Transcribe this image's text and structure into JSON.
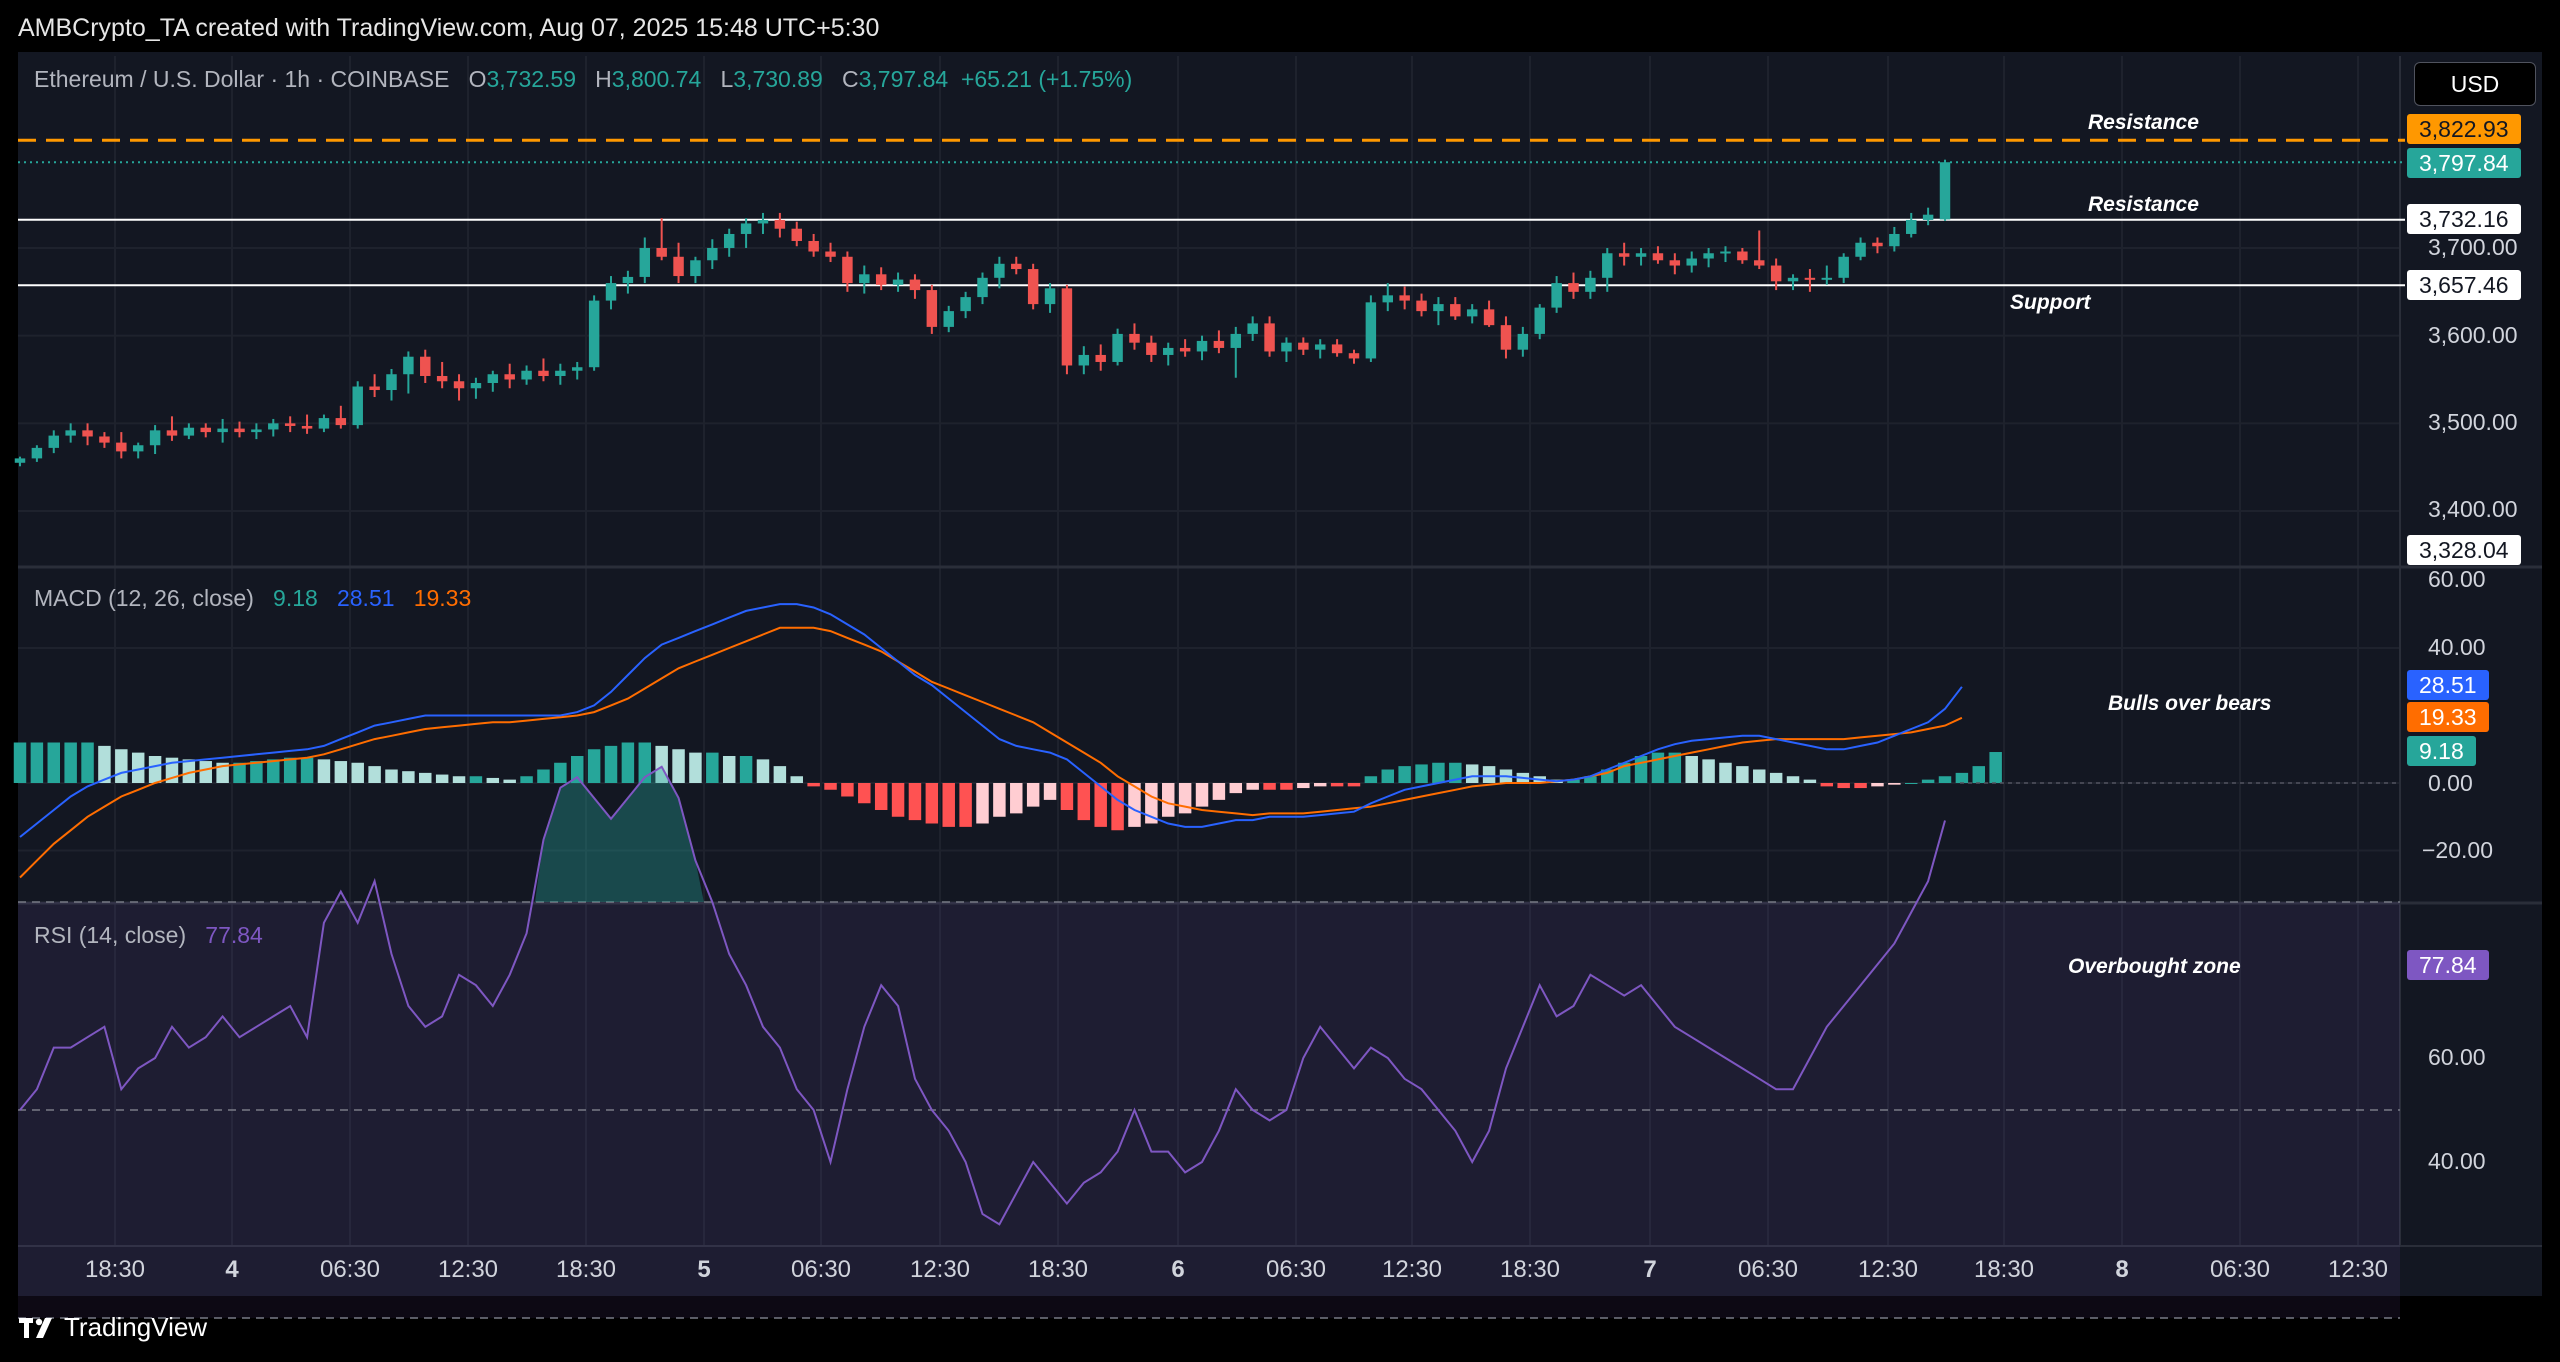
{
  "header": {
    "credit": "AMBCrypto_TA created with TradingView.com, Aug 07, 2025 15:48 UTC+5:30"
  },
  "footer": {
    "brand": "TradingView",
    "logo_icon": "tradingview-logo-icon"
  },
  "currency_button": "USD",
  "price_panel": {
    "symbol": "Ethereum / U.S. Dollar · 1h · COINBASE",
    "ohlc": {
      "o_label": "O",
      "o": "3,732.59",
      "h_label": "H",
      "h": "3,800.74",
      "l_label": "L",
      "l": "3,730.89",
      "c_label": "C",
      "c": "3,797.84",
      "change": "+65.21 (+1.75%)"
    },
    "axis_ticks": [
      "3,700.00",
      "3,600.00",
      "3,500.00",
      "3,400.00"
    ],
    "tags": {
      "resistance_upper": "3,822.93",
      "last_price": "3,797.84",
      "resistance_lower": "3,732.16",
      "support": "3,657.46",
      "low_mark": "3,328.04"
    },
    "annotations": {
      "resistance_upper": "Resistance",
      "resistance_lower": "Resistance",
      "support": "Support"
    }
  },
  "macd_panel": {
    "legend_title": "MACD (12, 26, close)",
    "histogram": "9.18",
    "macd": "28.51",
    "signal": "19.33",
    "axis_ticks": [
      "60.00",
      "40.00",
      "0.00",
      "−20.00"
    ],
    "annotation": "Bulls over bears"
  },
  "rsi_panel": {
    "legend_title": "RSI (14, close)",
    "value": "77.84",
    "axis_ticks": [
      "60.00",
      "40.00"
    ],
    "annotation": "Overbought zone"
  },
  "time_axis": [
    "18:30",
    "4",
    "06:30",
    "12:30",
    "18:30",
    "5",
    "06:30",
    "12:30",
    "18:30",
    "6",
    "06:30",
    "12:30",
    "18:30",
    "7",
    "06:30",
    "12:30",
    "18:30",
    "8",
    "06:30",
    "12:30"
  ],
  "time_axis_bold": [
    1,
    5,
    9,
    13,
    17
  ],
  "colors": {
    "bull": "#26a69a",
    "bear": "#ef5350",
    "macd_line": "#2962ff",
    "signal_line": "#ff6d00",
    "hist_bull_strong": "#26a69a",
    "hist_bull_weak": "#b2dfdb",
    "hist_bear_strong": "#ff5252",
    "hist_bear_weak": "#ffcdd2",
    "rsi_line": "#7e57c2",
    "resistance_dash": "#ff9800",
    "panel_bg": "#131722"
  },
  "chart_data": [
    {
      "type": "candlestick",
      "title": "Ethereum / U.S. Dollar · 1h · COINBASE",
      "ylim": [
        3300,
        3870
      ],
      "levels": [
        {
          "value": 3822.93,
          "label": "Resistance",
          "style": "dashed"
        },
        {
          "value": 3732.16,
          "label": "Resistance",
          "style": "solid"
        },
        {
          "value": 3657.46,
          "label": "Support",
          "style": "solid"
        }
      ],
      "ohlc": [
        [
          3455,
          3462,
          3451,
          3460
        ],
        [
          3460,
          3475,
          3456,
          3472
        ],
        [
          3472,
          3492,
          3466,
          3486
        ],
        [
          3486,
          3500,
          3478,
          3492
        ],
        [
          3492,
          3500,
          3475,
          3485
        ],
        [
          3485,
          3490,
          3472,
          3478
        ],
        [
          3478,
          3490,
          3460,
          3468
        ],
        [
          3468,
          3478,
          3460,
          3475
        ],
        [
          3475,
          3498,
          3465,
          3492
        ],
        [
          3492,
          3508,
          3480,
          3486
        ],
        [
          3486,
          3500,
          3482,
          3495
        ],
        [
          3495,
          3500,
          3484,
          3490
        ],
        [
          3490,
          3505,
          3478,
          3494
        ],
        [
          3494,
          3502,
          3484,
          3490
        ],
        [
          3490,
          3500,
          3482,
          3493
        ],
        [
          3493,
          3505,
          3485,
          3500
        ],
        [
          3500,
          3508,
          3490,
          3497
        ],
        [
          3497,
          3510,
          3488,
          3494
        ],
        [
          3494,
          3510,
          3490,
          3506
        ],
        [
          3506,
          3520,
          3494,
          3498
        ],
        [
          3498,
          3548,
          3494,
          3542
        ],
        [
          3542,
          3556,
          3530,
          3538
        ],
        [
          3538,
          3562,
          3526,
          3556
        ],
        [
          3556,
          3582,
          3534,
          3576
        ],
        [
          3576,
          3584,
          3546,
          3554
        ],
        [
          3554,
          3570,
          3540,
          3548
        ],
        [
          3548,
          3556,
          3526,
          3540
        ],
        [
          3540,
          3552,
          3528,
          3546
        ],
        [
          3546,
          3560,
          3536,
          3556
        ],
        [
          3556,
          3568,
          3540,
          3550
        ],
        [
          3550,
          3566,
          3544,
          3560
        ],
        [
          3560,
          3574,
          3548,
          3554
        ],
        [
          3554,
          3568,
          3544,
          3560
        ],
        [
          3560,
          3570,
          3550,
          3564
        ],
        [
          3564,
          3646,
          3560,
          3640
        ],
        [
          3640,
          3668,
          3630,
          3660
        ],
        [
          3660,
          3674,
          3648,
          3667
        ],
        [
          3667,
          3712,
          3660,
          3700
        ],
        [
          3700,
          3734,
          3686,
          3690
        ],
        [
          3690,
          3706,
          3660,
          3668
        ],
        [
          3668,
          3690,
          3660,
          3686
        ],
        [
          3686,
          3710,
          3676,
          3700
        ],
        [
          3700,
          3722,
          3690,
          3716
        ],
        [
          3716,
          3734,
          3700,
          3728
        ],
        [
          3728,
          3740,
          3716,
          3732
        ],
        [
          3732,
          3740,
          3712,
          3722
        ],
        [
          3722,
          3730,
          3702,
          3708
        ],
        [
          3708,
          3716,
          3690,
          3696
        ],
        [
          3696,
          3706,
          3684,
          3690
        ],
        [
          3690,
          3696,
          3650,
          3660
        ],
        [
          3660,
          3680,
          3648,
          3670
        ],
        [
          3670,
          3678,
          3652,
          3658
        ],
        [
          3658,
          3672,
          3650,
          3664
        ],
        [
          3664,
          3670,
          3642,
          3652
        ],
        [
          3652,
          3658,
          3602,
          3610
        ],
        [
          3610,
          3634,
          3604,
          3628
        ],
        [
          3628,
          3650,
          3620,
          3644
        ],
        [
          3644,
          3672,
          3636,
          3666
        ],
        [
          3666,
          3690,
          3654,
          3682
        ],
        [
          3682,
          3690,
          3670,
          3676
        ],
        [
          3676,
          3682,
          3630,
          3636
        ],
        [
          3636,
          3660,
          3626,
          3654
        ],
        [
          3654,
          3658,
          3556,
          3566
        ],
        [
          3566,
          3588,
          3556,
          3578
        ],
        [
          3578,
          3590,
          3560,
          3570
        ],
        [
          3570,
          3608,
          3566,
          3602
        ],
        [
          3602,
          3614,
          3584,
          3592
        ],
        [
          3592,
          3600,
          3570,
          3578
        ],
        [
          3578,
          3592,
          3566,
          3586
        ],
        [
          3586,
          3596,
          3576,
          3582
        ],
        [
          3582,
          3600,
          3572,
          3594
        ],
        [
          3594,
          3606,
          3580,
          3586
        ],
        [
          3586,
          3610,
          3552,
          3602
        ],
        [
          3602,
          3622,
          3594,
          3614
        ],
        [
          3614,
          3622,
          3576,
          3582
        ],
        [
          3582,
          3598,
          3570,
          3592
        ],
        [
          3592,
          3598,
          3578,
          3584
        ],
        [
          3584,
          3596,
          3574,
          3590
        ],
        [
          3590,
          3596,
          3576,
          3580
        ],
        [
          3580,
          3584,
          3568,
          3574
        ],
        [
          3574,
          3646,
          3570,
          3638
        ],
        [
          3638,
          3660,
          3628,
          3646
        ],
        [
          3646,
          3656,
          3630,
          3640
        ],
        [
          3640,
          3648,
          3622,
          3628
        ],
        [
          3628,
          3644,
          3612,
          3636
        ],
        [
          3636,
          3644,
          3618,
          3622
        ],
        [
          3622,
          3636,
          3614,
          3630
        ],
        [
          3630,
          3640,
          3610,
          3612
        ],
        [
          3612,
          3622,
          3574,
          3584
        ],
        [
          3584,
          3610,
          3576,
          3602
        ],
        [
          3602,
          3636,
          3596,
          3632
        ],
        [
          3632,
          3668,
          3626,
          3660
        ],
        [
          3660,
          3672,
          3642,
          3650
        ],
        [
          3650,
          3674,
          3642,
          3666
        ],
        [
          3666,
          3700,
          3650,
          3694
        ],
        [
          3694,
          3706,
          3680,
          3690
        ],
        [
          3690,
          3700,
          3680,
          3694
        ],
        [
          3694,
          3702,
          3682,
          3686
        ],
        [
          3686,
          3694,
          3670,
          3680
        ],
        [
          3680,
          3696,
          3672,
          3688
        ],
        [
          3688,
          3700,
          3678,
          3694
        ],
        [
          3694,
          3702,
          3684,
          3696
        ],
        [
          3696,
          3700,
          3682,
          3686
        ],
        [
          3686,
          3720,
          3676,
          3680
        ],
        [
          3680,
          3688,
          3652,
          3662
        ],
        [
          3662,
          3670,
          3652,
          3666
        ],
        [
          3666,
          3676,
          3650,
          3664
        ],
        [
          3664,
          3680,
          3658,
          3666
        ],
        [
          3666,
          3694,
          3660,
          3690
        ],
        [
          3690,
          3712,
          3686,
          3706
        ],
        [
          3706,
          3712,
          3694,
          3702
        ],
        [
          3702,
          3724,
          3696,
          3716
        ],
        [
          3716,
          3740,
          3712,
          3732
        ],
        [
          3732,
          3746,
          3726,
          3738
        ],
        [
          3732.59,
          3800.74,
          3730.89,
          3797.84
        ]
      ]
    },
    {
      "type": "line",
      "title": "MACD (12, 26, close)",
      "ylim": [
        -28,
        62
      ],
      "series": [
        {
          "name": "MACD",
          "values": [
            -16,
            -12,
            -8,
            -4,
            -1,
            1,
            3,
            4,
            5,
            6,
            6.5,
            7,
            7.5,
            8,
            8.5,
            9,
            9.5,
            10,
            11,
            13,
            15,
            17,
            18,
            19,
            20,
            20,
            20,
            20,
            20,
            20,
            20,
            20,
            20,
            21,
            23,
            27,
            32,
            37,
            41,
            43,
            45,
            47,
            49,
            51,
            52,
            53,
            53,
            52,
            50,
            47,
            44,
            40,
            36,
            32,
            29,
            25,
            21,
            17,
            13,
            11,
            10,
            9,
            7,
            3,
            -1,
            -5,
            -8,
            -10,
            -12,
            -13,
            -13,
            -12,
            -11,
            -11,
            -10,
            -10,
            -10,
            -9.5,
            -9,
            -8.5,
            -6,
            -4,
            -2,
            -1,
            0,
            1,
            2,
            2,
            2,
            1.5,
            1,
            0.5,
            1,
            2,
            4,
            6,
            8,
            10,
            11.5,
            12.5,
            13,
            13.5,
            14,
            14,
            13,
            12,
            11,
            10,
            10,
            11,
            12,
            14,
            16,
            18,
            22,
            28.51
          ]
        },
        {
          "name": "Signal",
          "values": [
            -28,
            -23,
            -18,
            -14,
            -10,
            -7,
            -4,
            -2,
            0,
            1.5,
            3,
            4,
            5,
            5.5,
            6,
            6.5,
            7,
            7.5,
            8.5,
            10,
            11.5,
            13,
            14,
            15,
            16,
            16.5,
            17,
            17.5,
            18,
            18,
            18.5,
            19,
            19.5,
            20,
            21,
            23,
            25,
            28,
            31,
            34,
            36,
            38,
            40,
            42,
            44,
            46,
            46,
            46,
            45,
            43,
            41,
            39,
            36,
            33,
            30,
            28,
            26,
            24,
            22,
            20,
            18,
            15,
            12,
            9,
            6,
            2,
            -1,
            -4,
            -6,
            -7,
            -8,
            -8.5,
            -9,
            -9.5,
            -9,
            -9,
            -9,
            -8.5,
            -8,
            -7.5,
            -7,
            -6,
            -5,
            -4,
            -3,
            -2,
            -1,
            -0.5,
            0,
            0,
            0,
            0.5,
            1,
            2,
            3,
            5,
            6,
            7,
            8,
            9,
            10,
            11,
            12,
            12.5,
            13,
            13,
            13,
            13,
            13,
            13.5,
            14,
            14.5,
            15,
            16,
            17,
            19.33
          ]
        }
      ],
      "histogram": [
        12,
        12,
        12,
        12,
        12,
        11,
        10,
        9,
        8,
        7.5,
        7,
        6.5,
        6,
        6,
        6.5,
        7,
        7.5,
        7.5,
        7,
        6.5,
        6,
        5,
        4,
        3.5,
        3,
        2.5,
        2,
        2,
        1.5,
        1,
        2,
        4,
        6,
        8,
        10,
        11,
        12,
        12,
        11,
        10,
        9,
        9,
        8,
        8,
        7,
        5,
        2,
        -1,
        -2,
        -4,
        -6,
        -8,
        -10,
        -11,
        -12,
        -13,
        -13,
        -12,
        -10,
        -9,
        -7,
        -5,
        -8,
        -11,
        -13,
        -14,
        -13,
        -12,
        -10,
        -9,
        -7,
        -5,
        -3,
        -2,
        -2,
        -2,
        -1.5,
        -1,
        -1,
        -1,
        2,
        4,
        5,
        5.5,
        6,
        6,
        5.5,
        5,
        4,
        3,
        2,
        1,
        1,
        2,
        4,
        6,
        8,
        9,
        9,
        8,
        7,
        6,
        5,
        4,
        3,
        2,
        1,
        -1,
        -1.5,
        -1.5,
        -1,
        -0.5,
        0,
        1,
        2,
        3,
        5,
        9.18
      ]
    },
    {
      "type": "line",
      "title": "RSI (14, close)",
      "ylim": [
        30,
        85
      ],
      "bands": [
        70,
        50,
        30
      ],
      "series": [
        {
          "name": "RSI",
          "values": [
            50,
            52,
            56,
            56,
            57,
            58,
            52,
            54,
            55,
            58,
            56,
            57,
            59,
            57,
            58,
            59,
            60,
            57,
            68,
            71,
            68,
            72,
            65,
            60,
            58,
            59,
            63,
            62,
            60,
            63,
            67,
            76,
            81,
            82,
            80,
            78,
            80,
            82,
            83,
            80,
            74,
            70,
            65,
            62,
            58,
            56,
            52,
            50,
            45,
            52,
            58,
            62,
            60,
            53,
            50,
            48,
            45,
            40,
            39,
            42,
            45,
            43,
            41,
            43,
            44,
            46,
            50,
            46,
            46,
            44,
            45,
            48,
            52,
            50,
            49,
            50,
            55,
            58,
            56,
            54,
            56,
            55,
            53,
            52,
            50,
            48,
            45,
            48,
            54,
            58,
            62,
            59,
            60,
            63,
            62,
            61,
            62,
            60,
            58,
            57,
            56,
            55,
            54,
            53,
            52,
            52,
            55,
            58,
            60,
            62,
            64,
            66,
            69,
            72,
            77.84
          ]
        }
      ]
    }
  ]
}
